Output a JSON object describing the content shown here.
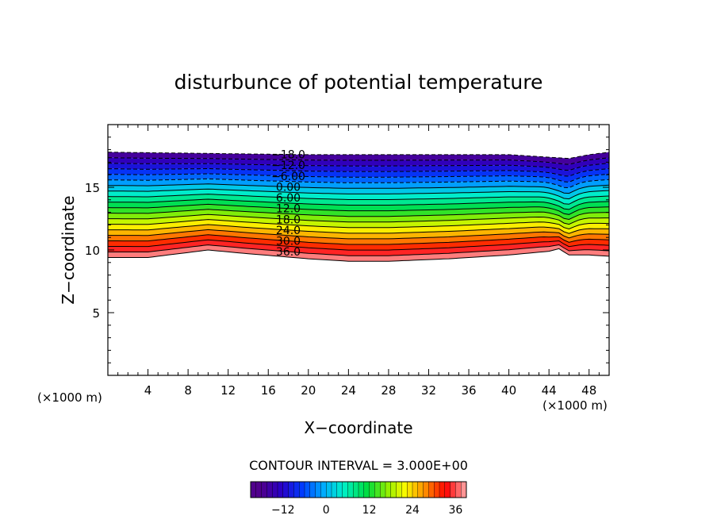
{
  "chart_data": {
    "type": "contour",
    "title": "disturbunce of potential temperature",
    "xlabel": "X−coordinate",
    "ylabel": "Z−coordinate",
    "x_unit_left": "(×1000 m)",
    "x_unit_right": "(×1000 m)",
    "xlim": [
      0,
      50
    ],
    "ylim": [
      0,
      20
    ],
    "x_ticks": [
      4,
      8,
      12,
      16,
      20,
      24,
      28,
      32,
      36,
      40,
      44,
      48
    ],
    "y_ticks": [
      5,
      10,
      15
    ],
    "contour_interval_text": "CONTOUR INTERVAL = 3.000E+00",
    "contour_interval": 3,
    "contour_range": [
      -18,
      39
    ],
    "contour_labels": [
      {
        "text": "−18.0",
        "value": -18
      },
      {
        "text": "−12.0",
        "value": -12
      },
      {
        "text": "−6.00",
        "value": -6
      },
      {
        "text": "0.00",
        "value": 0
      },
      {
        "text": "6.00",
        "value": 6
      },
      {
        "text": "12.0",
        "value": 12
      },
      {
        "text": "18.0",
        "value": 18
      },
      {
        "text": "24.0",
        "value": 24
      },
      {
        "text": "30.0",
        "value": 30
      },
      {
        "text": "36.0",
        "value": 36
      }
    ],
    "label_x": 18,
    "layer_top_profile": [
      [
        0,
        17.8
      ],
      [
        10,
        17.7
      ],
      [
        20,
        17.6
      ],
      [
        30,
        17.6
      ],
      [
        40,
        17.6
      ],
      [
        44,
        17.4
      ],
      [
        46,
        17.3
      ],
      [
        48,
        17.6
      ],
      [
        50,
        17.8
      ]
    ],
    "layer_bottom_profile": [
      [
        0,
        9.4
      ],
      [
        4,
        9.4
      ],
      [
        8,
        9.8
      ],
      [
        10,
        10.0
      ],
      [
        14,
        9.7
      ],
      [
        20,
        9.3
      ],
      [
        24,
        9.1
      ],
      [
        28,
        9.1
      ],
      [
        34,
        9.3
      ],
      [
        40,
        9.6
      ],
      [
        44,
        9.9
      ],
      [
        45,
        10.1
      ],
      [
        46,
        9.6
      ],
      [
        48,
        9.6
      ],
      [
        50,
        9.5
      ]
    ],
    "dip_x": 45.5,
    "colorbar": {
      "tick_labels": [
        "−12",
        "0",
        "12",
        "24",
        "36"
      ],
      "tick_values": [
        -12,
        0,
        12,
        24,
        36
      ],
      "range": [
        -21,
        39
      ]
    }
  }
}
